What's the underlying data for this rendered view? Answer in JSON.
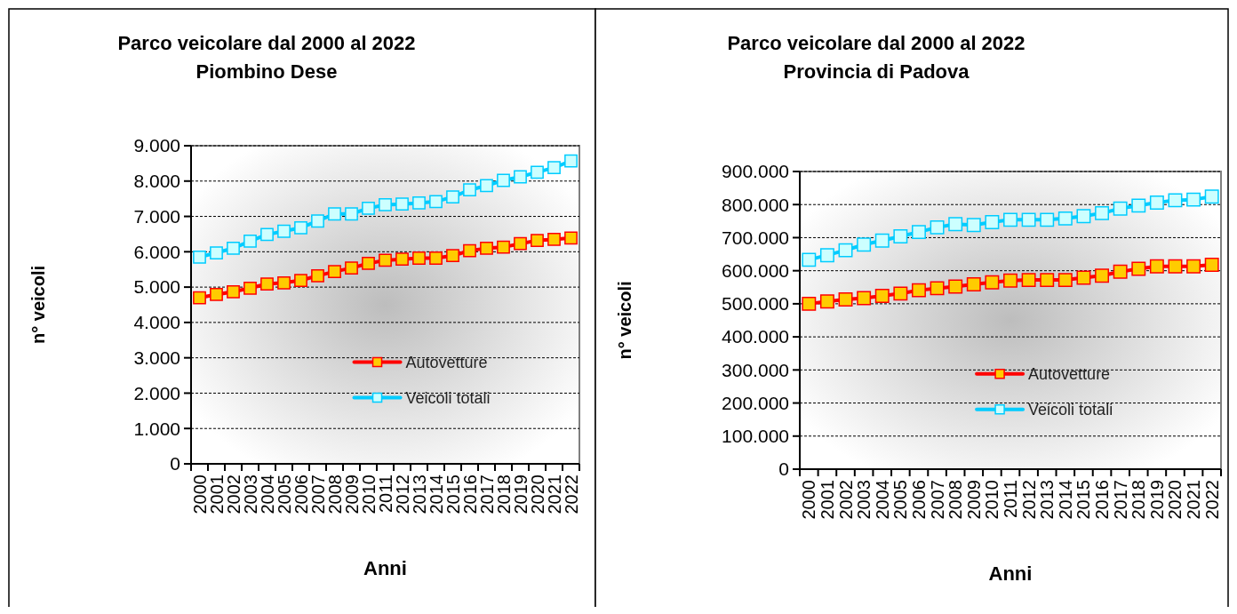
{
  "chart_data": [
    {
      "type": "line",
      "title": "Parco veicolare dal 2000 al 2022",
      "subtitle": "Piombino Dese",
      "xlabel": "Anni",
      "ylabel": "n° veicoli",
      "categories": [
        "2000",
        "2001",
        "2002",
        "2003",
        "2004",
        "2005",
        "2006",
        "2007",
        "2008",
        "2009",
        "2010",
        "2011",
        "2012",
        "2013",
        "2014",
        "2015",
        "2016",
        "2017",
        "2018",
        "2019",
        "2020",
        "2021",
        "2022"
      ],
      "series": [
        {
          "name": "Autovetture",
          "color": "#ff0000",
          "colors": [
            "#ffcc00",
            "#ffcc00",
            "#ffcc00",
            "#ffcc00",
            "#ffcc00",
            "#ffcc00",
            "#ffcc00",
            "#ffcc00",
            "#ffcc00",
            "#ffcc00",
            "#ffcc00",
            "#ffcc00",
            "#ffcc00",
            "#ffcc00",
            "#ffcc00",
            "#ffcc00",
            "#ffcc00",
            "#ffcc00",
            "#ffcc00",
            "#ffcc00",
            "#ffcc00",
            "#ffcc00",
            "#ffcc00"
          ],
          "values": [
            4700,
            4790,
            4870,
            4970,
            5090,
            5120,
            5190,
            5320,
            5440,
            5540,
            5670,
            5760,
            5790,
            5820,
            5820,
            5890,
            6030,
            6100,
            6130,
            6230,
            6320,
            6350,
            6390
          ]
        },
        {
          "name": "Veicoli totali",
          "color": "#00ccff",
          "colors": [
            "#ccffff",
            "#ccffff",
            "#ccffff",
            "#ccffff",
            "#ccffff",
            "#ccffff",
            "#ccffff",
            "#ccffff",
            "#ccffff",
            "#ccffff",
            "#ccffff",
            "#ccffff",
            "#ccffff",
            "#ccffff",
            "#ccffff",
            "#ccffff",
            "#ccffff",
            "#ccffff",
            "#ccffff",
            "#ccffff",
            "#ccffff",
            "#ccffff",
            "#ccffff"
          ],
          "values": [
            5850,
            5970,
            6100,
            6300,
            6490,
            6580,
            6680,
            6870,
            7070,
            7070,
            7230,
            7330,
            7350,
            7380,
            7420,
            7550,
            7750,
            7870,
            8020,
            8120,
            8250,
            8380,
            8570
          ]
        }
      ],
      "ylim": [
        0,
        9000
      ],
      "yticks": [
        0,
        {
          "value": 1000,
          "label": "1.000"
        },
        {
          "value": 2000,
          "label": "2.000"
        },
        {
          "value": 3000,
          "label": "3.000"
        },
        {
          "value": 4000,
          "label": "4.000"
        },
        {
          "value": 5000,
          "label": "5.000"
        },
        {
          "value": 6000,
          "label": "6.000"
        },
        {
          "value": 7000,
          "label": "7.000"
        },
        {
          "value": 8000,
          "label": "8.000"
        },
        {
          "value": 9000,
          "label": "9.000"
        }
      ],
      "grid": "y",
      "legend": "center right",
      "marker": "square",
      "line_style": "solid"
    },
    {
      "type": "line",
      "title": "Parco veicolare dal 2000 al 2022",
      "subtitle": "Provincia di Padova",
      "xlabel": "Anni",
      "ylabel": "n° veicoli",
      "categories": [
        "2000",
        "2001",
        "2002",
        "2003",
        "2004",
        "2005",
        "2006",
        "2007",
        "2008",
        "2009",
        "2010",
        "2011",
        "2012",
        "2013",
        "2014",
        "2015",
        "2016",
        "2017",
        "2018",
        "2019",
        "2020",
        "2021",
        "2022"
      ],
      "series": [
        {
          "name": "Autovetture",
          "color": "#ff0000",
          "colors": [
            "#ffcc00",
            "#ffcc00",
            "#ffcc00",
            "#ffcc00",
            "#ffcc00",
            "#ffcc00",
            "#ffcc00",
            "#ffcc00",
            "#ffcc00",
            "#ffcc00",
            "#ffcc00",
            "#ffcc00",
            "#ffcc00",
            "#ffcc00",
            "#ffcc00",
            "#ffcc00",
            "#ffcc00",
            "#ffcc00",
            "#ffcc00",
            "#ffcc00",
            "#ffcc00",
            "#ffcc00",
            "#ffcc00"
          ],
          "values": [
            500000,
            507000,
            513000,
            517000,
            524000,
            531000,
            541000,
            547000,
            552000,
            559000,
            565000,
            570000,
            572000,
            572000,
            572000,
            579000,
            585000,
            597000,
            606000,
            613000,
            613000,
            613000,
            618000
          ]
        },
        {
          "name": "Veicoli totali",
          "color": "#00ccff",
          "colors": [
            "#ccffff",
            "#ccffff",
            "#ccffff",
            "#ccffff",
            "#ccffff",
            "#ccffff",
            "#ccffff",
            "#ccffff",
            "#ccffff",
            "#ccffff",
            "#ccffff",
            "#ccffff",
            "#ccffff",
            "#ccffff",
            "#ccffff",
            "#ccffff",
            "#ccffff",
            "#ccffff",
            "#ccffff",
            "#ccffff",
            "#ccffff",
            "#ccffff",
            "#ccffff"
          ],
          "values": [
            633000,
            647000,
            662000,
            679000,
            691000,
            704000,
            717000,
            731000,
            741000,
            738000,
            747000,
            754000,
            754000,
            754000,
            758000,
            765000,
            774000,
            788000,
            797000,
            806000,
            813000,
            815000,
            824000
          ]
        }
      ],
      "ylim": [
        0,
        900000
      ],
      "yticks": [
        0,
        {
          "value": 100000,
          "label": "100.000"
        },
        {
          "value": 200000,
          "label": "200.000"
        },
        {
          "value": 300000,
          "label": "300.000"
        },
        {
          "value": 400000,
          "label": "400.000"
        },
        {
          "value": 500000,
          "label": "500.000"
        },
        {
          "value": 600000,
          "label": "600.000"
        },
        {
          "value": 700000,
          "label": "700.000"
        },
        {
          "value": 800000,
          "label": "800.000"
        },
        {
          "value": 900000,
          "label": "900.000"
        }
      ],
      "grid": "y",
      "legend": "center right",
      "marker": "square",
      "line_style": "solid"
    }
  ]
}
